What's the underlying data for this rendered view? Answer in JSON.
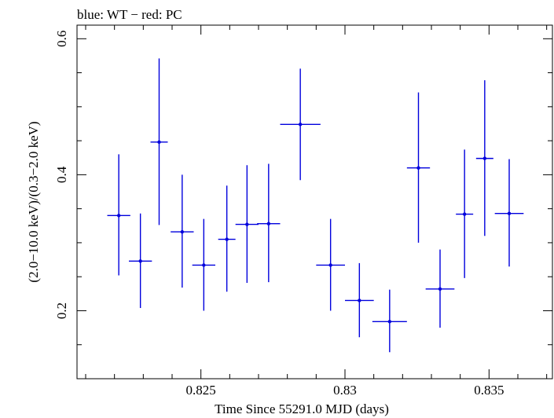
{
  "chart_data": {
    "type": "scatter",
    "title": "blue: WT − red: PC",
    "xlabel": "Time Since 55291.0 MJD (days)",
    "ylabel": "(2.0−10.0 keV)/(0.3−2.0 keV)",
    "xlim": [
      0.8207,
      0.8372
    ],
    "ylim": [
      0.1,
      0.62
    ],
    "x_ticks": [
      0.825,
      0.83,
      0.835
    ],
    "x_tick_labels": [
      "0.825",
      "0.83",
      "0.835"
    ],
    "y_ticks": [
      0.2,
      0.4,
      0.6
    ],
    "y_tick_labels": [
      "0.2",
      "0.4",
      "0.6"
    ],
    "grid": false,
    "series": [
      {
        "name": "WT",
        "color": "#0000dd",
        "points": [
          {
            "x": 0.82215,
            "xerr": 0.0004,
            "y": 0.34,
            "ylo": 0.252,
            "yhi": 0.43
          },
          {
            "x": 0.8229,
            "xerr": 0.0004,
            "y": 0.273,
            "ylo": 0.204,
            "yhi": 0.343
          },
          {
            "x": 0.82355,
            "xerr": 0.0003,
            "y": 0.448,
            "ylo": 0.326,
            "yhi": 0.571
          },
          {
            "x": 0.82435,
            "xerr": 0.0004,
            "y": 0.316,
            "ylo": 0.234,
            "yhi": 0.4
          },
          {
            "x": 0.8251,
            "xerr": 0.0004,
            "y": 0.267,
            "ylo": 0.2,
            "yhi": 0.335
          },
          {
            "x": 0.8259,
            "xerr": 0.0003,
            "y": 0.305,
            "ylo": 0.228,
            "yhi": 0.384
          },
          {
            "x": 0.8266,
            "xerr": 0.0004,
            "y": 0.327,
            "ylo": 0.241,
            "yhi": 0.414
          },
          {
            "x": 0.82735,
            "xerr": 0.0004,
            "y": 0.328,
            "ylo": 0.242,
            "yhi": 0.416
          },
          {
            "x": 0.82845,
            "xerr": 0.0007,
            "y": 0.474,
            "ylo": 0.392,
            "yhi": 0.556
          },
          {
            "x": 0.8295,
            "xerr": 0.0005,
            "y": 0.267,
            "ylo": 0.2,
            "yhi": 0.335
          },
          {
            "x": 0.8305,
            "xerr": 0.0005,
            "y": 0.215,
            "ylo": 0.161,
            "yhi": 0.27
          },
          {
            "x": 0.83155,
            "xerr": 0.0006,
            "y": 0.184,
            "ylo": 0.139,
            "yhi": 0.231
          },
          {
            "x": 0.83255,
            "xerr": 0.0004,
            "y": 0.41,
            "ylo": 0.3,
            "yhi": 0.521
          },
          {
            "x": 0.8333,
            "xerr": 0.0005,
            "y": 0.232,
            "ylo": 0.175,
            "yhi": 0.29
          },
          {
            "x": 0.83415,
            "xerr": 0.0003,
            "y": 0.342,
            "ylo": 0.248,
            "yhi": 0.437
          },
          {
            "x": 0.83485,
            "xerr": 0.0003,
            "y": 0.424,
            "ylo": 0.31,
            "yhi": 0.539
          },
          {
            "x": 0.8357,
            "xerr": 0.0005,
            "y": 0.343,
            "ylo": 0.265,
            "yhi": 0.423
          }
        ]
      }
    ]
  }
}
